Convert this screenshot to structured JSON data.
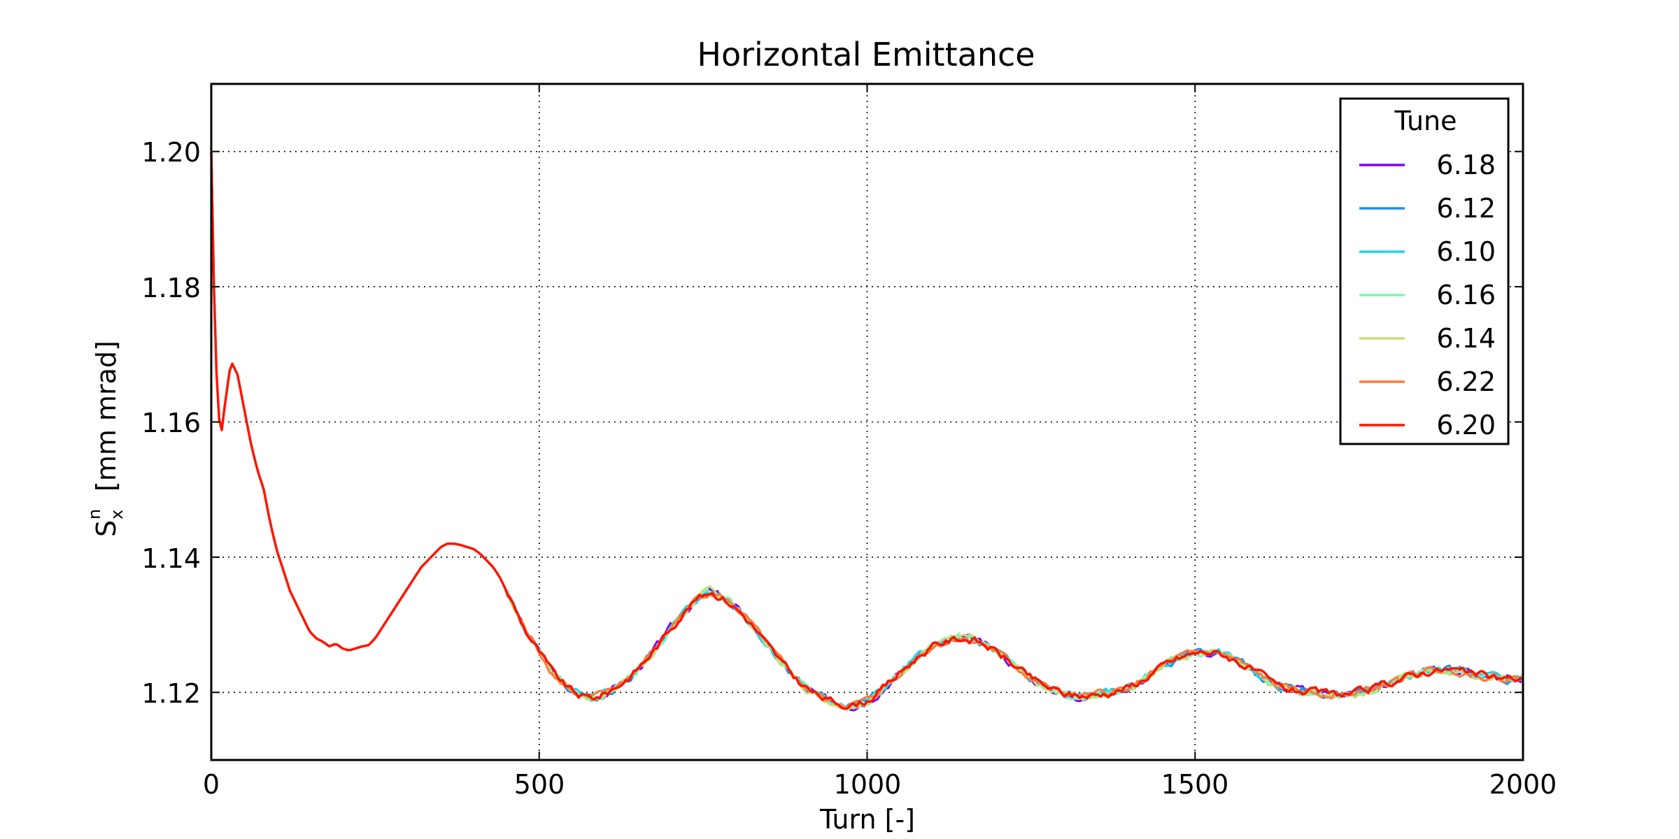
{
  "chart_data": {
    "type": "line",
    "title": "Horizontal Emittance",
    "xlabel": "Turn [-]",
    "ylabel": {
      "symbol": "S",
      "superscript": "n",
      "subscript": "x",
      "units": "[mm mrad]"
    },
    "xlim": [
      0,
      2000
    ],
    "ylim": [
      1.11,
      1.21
    ],
    "xticks": [
      0,
      500,
      1000,
      1500,
      2000
    ],
    "xtick_labels": [
      "0",
      "500",
      "1000",
      "1500",
      "2000"
    ],
    "yticks": [
      1.12,
      1.14,
      1.16,
      1.18,
      1.2
    ],
    "ytick_labels": [
      "1.12",
      "1.14",
      "1.16",
      "1.18",
      "1.20"
    ],
    "grid": true,
    "grid_style": "dotted",
    "legend": {
      "title": "Tune",
      "position": "top-right"
    },
    "series": [
      {
        "name": "6.18",
        "color": "#8000ff"
      },
      {
        "name": "6.12",
        "color": "#1f8ff0"
      },
      {
        "name": "6.10",
        "color": "#22d3e6"
      },
      {
        "name": "6.16",
        "color": "#7ff7b0"
      },
      {
        "name": "6.14",
        "color": "#c6dc78"
      },
      {
        "name": "6.22",
        "color": "#ff7a3a"
      },
      {
        "name": "6.20",
        "color": "#ff1500"
      }
    ],
    "base_curve": {
      "x": [
        0,
        5,
        10,
        15,
        20,
        30,
        40,
        50,
        60,
        70,
        80,
        90,
        100,
        110,
        120,
        130,
        140,
        150,
        160,
        170,
        180,
        190,
        200,
        210,
        220,
        230,
        240,
        250,
        260,
        270,
        280,
        290,
        300,
        310,
        320,
        330,
        340,
        350,
        360,
        370,
        380,
        390,
        400,
        410,
        420,
        430,
        440,
        450,
        460,
        470,
        480,
        490,
        500,
        510,
        520,
        530,
        540,
        550,
        560,
        570,
        580,
        590,
        600,
        620,
        640,
        660,
        680,
        700,
        720,
        740,
        760,
        780,
        800,
        820,
        840,
        860,
        880,
        900,
        920,
        940,
        960,
        980,
        1000,
        1020,
        1040,
        1060,
        1080,
        1100,
        1120,
        1140,
        1160,
        1180,
        1200,
        1220,
        1240,
        1260,
        1280,
        1300,
        1320,
        1340,
        1360,
        1380,
        1400,
        1420,
        1440,
        1460,
        1480,
        1500,
        1520,
        1540,
        1560,
        1580,
        1600,
        1620,
        1640,
        1660,
        1680,
        1700,
        1720,
        1740,
        1760,
        1780,
        1800,
        1820,
        1840,
        1860,
        1880,
        1900,
        1920,
        1940,
        1960,
        1980,
        2000
      ],
      "y": [
        1.2,
        1.175,
        1.162,
        1.158,
        1.162,
        1.169,
        1.167,
        1.162,
        1.157,
        1.153,
        1.15,
        1.145,
        1.141,
        1.138,
        1.135,
        1.133,
        1.131,
        1.129,
        1.128,
        1.1275,
        1.1268,
        1.1272,
        1.1265,
        1.1262,
        1.1265,
        1.1268,
        1.127,
        1.128,
        1.1295,
        1.131,
        1.1325,
        1.134,
        1.1355,
        1.137,
        1.1385,
        1.1395,
        1.1405,
        1.1415,
        1.142,
        1.142,
        1.1418,
        1.1415,
        1.1412,
        1.1405,
        1.1395,
        1.1385,
        1.137,
        1.135,
        1.133,
        1.131,
        1.129,
        1.1275,
        1.126,
        1.1245,
        1.123,
        1.122,
        1.121,
        1.1202,
        1.1196,
        1.1193,
        1.1192,
        1.1194,
        1.1198,
        1.121,
        1.1225,
        1.1245,
        1.1268,
        1.1295,
        1.1318,
        1.1338,
        1.135,
        1.134,
        1.1325,
        1.1305,
        1.128,
        1.1255,
        1.1232,
        1.1212,
        1.1198,
        1.1188,
        1.1183,
        1.1182,
        1.1188,
        1.1202,
        1.122,
        1.1238,
        1.1255,
        1.1268,
        1.1275,
        1.128,
        1.1278,
        1.127,
        1.1258,
        1.1243,
        1.1228,
        1.1215,
        1.1205,
        1.1198,
        1.1195,
        1.1195,
        1.1198,
        1.1202,
        1.1208,
        1.1218,
        1.1232,
        1.1244,
        1.1252,
        1.1258,
        1.126,
        1.1257,
        1.1248,
        1.1237,
        1.1225,
        1.1212,
        1.1205,
        1.1202,
        1.12,
        1.1198,
        1.1197,
        1.1198,
        1.1202,
        1.1208,
        1.1215,
        1.1222,
        1.1228,
        1.1232,
        1.1234,
        1.1232,
        1.1228,
        1.1225,
        1.1222,
        1.122,
        1.122
      ]
    }
  }
}
